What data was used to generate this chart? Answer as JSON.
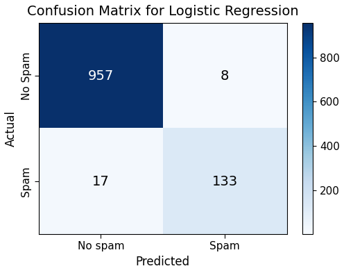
{
  "title": "Confusion Matrix for Logistic Regression",
  "matrix": [
    [
      957,
      8
    ],
    [
      17,
      133
    ]
  ],
  "x_labels": [
    "No spam",
    "Spam"
  ],
  "y_labels": [
    "No Spam",
    "Spam"
  ],
  "xlabel": "Predicted",
  "ylabel": "Actual",
  "cmap": "Blues",
  "text_colors": [
    [
      "white",
      "black"
    ],
    [
      "black",
      "black"
    ]
  ],
  "vmin": 0,
  "vmax": 957,
  "colorbar_ticks": [
    200,
    400,
    600,
    800
  ],
  "title_fontsize": 14,
  "label_fontsize": 12,
  "tick_fontsize": 11,
  "annot_fontsize": 14
}
